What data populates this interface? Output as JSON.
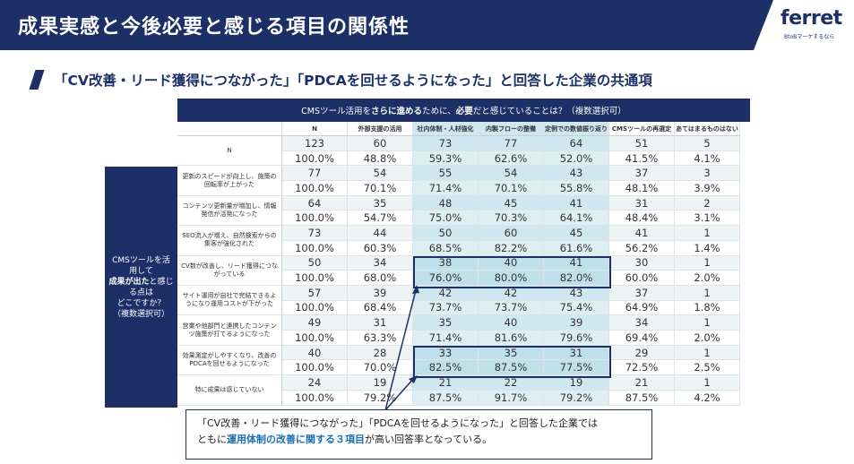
{
  "header": {
    "title": "成果実感と今後必要と感じる項目の関係性",
    "logo": "ferret",
    "logo_sub": "BtoBマーケするなら"
  },
  "subheading": "「CV改善・リード獲得につながった」「PDCAを回せるようになった」と回答した企業の共通項",
  "table": {
    "question_pre": "CMSツール活用を",
    "question_bold1": "さらに進める",
    "question_mid": "ために、",
    "question_bold2": "必要",
    "question_post": "だと感じていることは？（複数選択可）",
    "row_group_line1": "CMSツールを活用して",
    "row_group_bold": "成果が出た",
    "row_group_line2": "と感じる点は",
    "row_group_line3": "どこですか？",
    "row_group_line4": "（複数選択可）",
    "columns": [
      "N",
      "外部支援の活用",
      "社内体制・人材強化",
      "内製フローの整備",
      "定例での数値振り返り",
      "CMSツールの再選定",
      "あてはまるものはない"
    ],
    "rows": [
      {
        "label": "N",
        "counts": [
          "123",
          "60",
          "73",
          "77",
          "64",
          "51",
          "5"
        ],
        "pcts": [
          "100.0%",
          "48.8%",
          "59.3%",
          "62.6%",
          "52.0%",
          "41.5%",
          "4.1%"
        ]
      },
      {
        "label": "更新のスピードが向上し、施策の回転率が上がった",
        "counts": [
          "77",
          "54",
          "55",
          "54",
          "43",
          "37",
          "3"
        ],
        "pcts": [
          "100.0%",
          "70.1%",
          "71.4%",
          "70.1%",
          "55.8%",
          "48.1%",
          "3.9%"
        ]
      },
      {
        "label": "コンテンツ更新量が増加し、情報発信が活発になった",
        "counts": [
          "64",
          "35",
          "48",
          "45",
          "41",
          "31",
          "2"
        ],
        "pcts": [
          "100.0%",
          "54.7%",
          "75.0%",
          "70.3%",
          "64.1%",
          "48.4%",
          "3.1%"
        ]
      },
      {
        "label": "SEO流入が増え、自然検索からの集客が強化された",
        "counts": [
          "73",
          "44",
          "50",
          "60",
          "45",
          "41",
          "1"
        ],
        "pcts": [
          "100.0%",
          "60.3%",
          "68.5%",
          "82.2%",
          "61.6%",
          "56.2%",
          "1.4%"
        ]
      },
      {
        "label": "CV数が改善し、リード獲得につながっている",
        "counts": [
          "50",
          "34",
          "38",
          "40",
          "41",
          "30",
          "1"
        ],
        "pcts": [
          "100.0%",
          "68.0%",
          "76.0%",
          "80.0%",
          "82.0%",
          "60.0%",
          "2.0%"
        ]
      },
      {
        "label": "サイト運用が自社で完結できるようになり運用コストが下がった",
        "counts": [
          "57",
          "39",
          "42",
          "42",
          "43",
          "37",
          "1"
        ],
        "pcts": [
          "100.0%",
          "68.4%",
          "73.7%",
          "73.7%",
          "75.4%",
          "64.9%",
          "1.8%"
        ]
      },
      {
        "label": "営業や他部門と連携したコンテンツ施策が打てるようになった",
        "counts": [
          "49",
          "31",
          "35",
          "40",
          "39",
          "34",
          "1"
        ],
        "pcts": [
          "100.0%",
          "63.3%",
          "71.4%",
          "81.6%",
          "79.6%",
          "69.4%",
          "2.0%"
        ]
      },
      {
        "label": "効果測定がしやすくなり、改善のPDCAを回せるようになった",
        "counts": [
          "40",
          "28",
          "33",
          "35",
          "31",
          "29",
          "1"
        ],
        "pcts": [
          "100.0%",
          "70.0%",
          "82.5%",
          "87.5%",
          "77.5%",
          "72.5%",
          "2.5%"
        ]
      },
      {
        "label": "特に成果は感じていない",
        "counts": [
          "24",
          "19",
          "21",
          "22",
          "19",
          "21",
          "1"
        ],
        "pcts": [
          "100.0%",
          "79.2%",
          "87.5%",
          "91.7%",
          "79.2%",
          "87.5%",
          "4.2%"
        ]
      }
    ]
  },
  "callout": {
    "line1": "「CV改善・リード獲得につながった」「PDCAを回せるようになった」と回答した企業では",
    "line2_pre": "ともに",
    "line2_hl": "運用体制の改善に関する３項目",
    "line2_post": "が高い回答率となっている。"
  },
  "colors": {
    "navy": "#1c2f66",
    "teal": "#cfe7ee",
    "highlight_text": "#1c6fb0"
  }
}
